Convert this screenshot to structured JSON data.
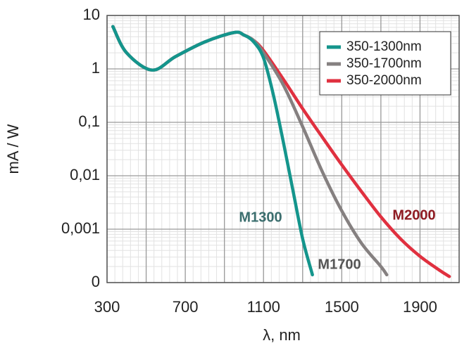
{
  "chart_data": {
    "type": "line",
    "xlabel": "λ, nm",
    "ylabel": "mA / W",
    "xlim": [
      300,
      2100
    ],
    "xticks": [
      300,
      700,
      1100,
      1500,
      1900
    ],
    "ylim": [
      0.0001,
      10
    ],
    "yscale": "log",
    "yticks": [
      {
        "value": 0.0001,
        "label": "0"
      },
      {
        "value": 0.001,
        "label": "0,001"
      },
      {
        "value": 0.01,
        "label": "0,01"
      },
      {
        "value": 0.1,
        "label": "0,1"
      },
      1,
      10
    ],
    "grid": true,
    "legend": "upper right",
    "series": [
      {
        "name": "350-1300nm",
        "color": "#14958c",
        "x": [
          330,
          400,
          530,
          650,
          800,
          950,
          1000,
          1050,
          1100,
          1150,
          1200,
          1250,
          1300,
          1350
        ],
        "values": [
          6.2,
          2.0,
          0.95,
          1.7,
          3.2,
          4.8,
          4.3,
          3.2,
          1.6,
          0.33,
          0.045,
          0.0054,
          0.00066,
          0.00014
        ]
      },
      {
        "name": "350-1700nm",
        "color": "#858080",
        "x": [
          330,
          400,
          530,
          650,
          800,
          950,
          1000,
          1050,
          1100,
          1200,
          1300,
          1400,
          1500,
          1600,
          1700,
          1730
        ],
        "values": [
          6.2,
          2.0,
          0.95,
          1.7,
          3.2,
          4.8,
          4.3,
          3.4,
          2.0,
          0.51,
          0.083,
          0.012,
          0.0022,
          0.00055,
          0.0002,
          0.00014
        ]
      },
      {
        "name": "350-2000nm",
        "color": "#e0303f",
        "x": [
          330,
          400,
          530,
          650,
          800,
          950,
          1000,
          1050,
          1100,
          1200,
          1300,
          1400,
          1500,
          1600,
          1700,
          1800,
          1900,
          2000,
          2050
        ],
        "values": [
          6.2,
          2.0,
          0.95,
          1.7,
          3.2,
          4.8,
          4.3,
          3.4,
          2.2,
          0.65,
          0.18,
          0.053,
          0.016,
          0.0051,
          0.0017,
          0.00066,
          0.00031,
          0.00017,
          0.00013
        ]
      }
    ],
    "annotations": [
      {
        "text": "M1300",
        "color": "#3b6e6e"
      },
      {
        "text": "M1700",
        "color": "#555555"
      },
      {
        "text": "M2000",
        "color": "#8e1b22"
      }
    ]
  }
}
